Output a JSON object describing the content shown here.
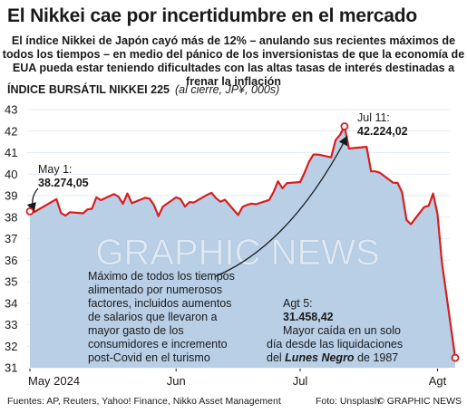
{
  "header": {
    "title": "El Nikkei cae por incertidumbre en el mercado",
    "subtitle": "El índice Nikkei de Japón cayó más de 12% – anulando sus recientes máximos de todos los tiempos – en medio del pánico de los inversionistas de que la economía de EUA pueda estar teniendo dificultades con las altas tasas de interés destinadas a frenar la inflación"
  },
  "chart_heading": {
    "title": "ÍNDICE BURSÁTIL NIKKEI 225",
    "units": "(al cierre, JP¥, 000s)"
  },
  "chart_data": {
    "type": "area",
    "title": "ÍNDICE BURSÁTIL NIKKEI 225",
    "ylabel": "(al cierre, JP¥, 000s)",
    "ylim": [
      31,
      43
    ],
    "yticks": [
      "43",
      "42",
      "41",
      "40",
      "39",
      "38",
      "37",
      "36",
      "35",
      "34",
      "33",
      "32",
      "31"
    ],
    "xticks": [
      "May 2024",
      "Jun",
      "Jul",
      "Agt"
    ],
    "x": [
      "2024-05-01",
      "2024-05-02",
      "2024-05-07",
      "2024-05-08",
      "2024-05-09",
      "2024-05-10",
      "2024-05-13",
      "2024-05-14",
      "2024-05-15",
      "2024-05-16",
      "2024-05-17",
      "2024-05-20",
      "2024-05-21",
      "2024-05-22",
      "2024-05-23",
      "2024-05-24",
      "2024-05-27",
      "2024-05-28",
      "2024-05-29",
      "2024-05-30",
      "2024-05-31",
      "2024-06-03",
      "2024-06-04",
      "2024-06-05",
      "2024-06-06",
      "2024-06-07",
      "2024-06-10",
      "2024-06-11",
      "2024-06-12",
      "2024-06-13",
      "2024-06-14",
      "2024-06-17",
      "2024-06-18",
      "2024-06-19",
      "2024-06-20",
      "2024-06-21",
      "2024-06-24",
      "2024-06-25",
      "2024-06-26",
      "2024-06-27",
      "2024-06-28",
      "2024-07-01",
      "2024-07-02",
      "2024-07-03",
      "2024-07-04",
      "2024-07-05",
      "2024-07-08",
      "2024-07-09",
      "2024-07-10",
      "2024-07-11",
      "2024-07-12",
      "2024-07-16",
      "2024-07-17",
      "2024-07-18",
      "2024-07-19",
      "2024-07-22",
      "2024-07-23",
      "2024-07-24",
      "2024-07-25",
      "2024-07-26",
      "2024-07-29",
      "2024-07-30",
      "2024-07-31",
      "2024-08-01",
      "2024-08-02",
      "2024-08-05"
    ],
    "values": [
      38.27,
      38.24,
      38.84,
      38.2,
      38.07,
      38.23,
      38.18,
      38.36,
      38.39,
      38.92,
      38.79,
      39.07,
      38.95,
      38.62,
      39.1,
      38.65,
      38.9,
      38.86,
      38.56,
      38.05,
      38.49,
      38.92,
      38.84,
      38.49,
      38.7,
      38.68,
      39.04,
      39.13,
      38.88,
      38.72,
      38.81,
      38.1,
      38.48,
      38.57,
      38.63,
      38.6,
      38.8,
      39.17,
      39.67,
      39.34,
      39.58,
      39.63,
      40.07,
      40.58,
      40.91,
      40.91,
      40.78,
      41.58,
      41.83,
      42.22,
      41.19,
      41.27,
      40.13,
      40.13,
      40.06,
      39.6,
      39.59,
      39.15,
      37.87,
      37.67,
      38.47,
      38.53,
      39.1,
      38.13,
      35.91,
      31.46
    ],
    "grid": true,
    "annotations": {
      "start_label": "May 1:",
      "start_value": "38.274,05",
      "peak_label": "Jul 11:",
      "peak_value": "42.224,02",
      "low_label": "Agt 5:",
      "low_value": "31.458,42",
      "low_note_1": "Mayor caída en un solo",
      "low_note_2a": "día desde las liquidaciones",
      "low_note_2b": "del",
      "low_note_em": "Lunes Negro",
      "low_note_2c": "de 1987",
      "rally_note": [
        "Máximo de todos los tiempos",
        "alimentado por numerosos",
        "factores, incluidos aumentos",
        "de salarios que llevaron a",
        "mayor gasto de los",
        "consumidores e incremento",
        "post-Covid en el turismo"
      ]
    }
  },
  "watermark": "GRAPHIC NEWS",
  "footer": {
    "sources": "Fuentes: AP, Reuters, Yahoo! Finance, Nikko Asset Management",
    "photo": "Foto: Unsplash",
    "brand": "© GRAPHIC NEWS"
  },
  "colors": {
    "area": "#b8cfe6",
    "line": "#d81e1e",
    "text": "#1a1a1a",
    "grid": "#ffffff"
  }
}
